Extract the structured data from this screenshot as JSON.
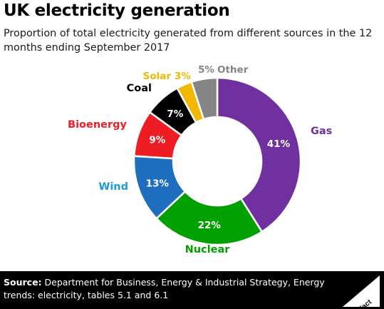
{
  "title": "UK electricity generation",
  "subtitle": "Proportion of total electricity generated from different sources in the 12 months ending September 2017",
  "chart_data": {
    "type": "pie",
    "variant": "donut",
    "slices": [
      {
        "name": "Gas",
        "value": 41,
        "label": "41%",
        "color": "#7030a0"
      },
      {
        "name": "Nuclear",
        "value": 22,
        "label": "22%",
        "color": "#00a000"
      },
      {
        "name": "Wind",
        "value": 13,
        "label": "13%",
        "color": "#1e6ebf"
      },
      {
        "name": "Bioenergy",
        "value": 9,
        "label": "9%",
        "color": "#ee1d24"
      },
      {
        "name": "Coal",
        "value": 7,
        "label": "7%",
        "color": "#000000"
      },
      {
        "name": "Solar",
        "value": 3,
        "label": "3%",
        "color": "#f0b800"
      },
      {
        "name": "Other",
        "value": 5,
        "label": "5%",
        "color": "#858585"
      }
    ],
    "name_colors": {
      "Gas": "#7030a0",
      "Nuclear": "#00a000",
      "Wind": "#1e9ad6",
      "Bioenergy": "#ee1d24",
      "Coal": "#000000",
      "Solar": "#f0b800",
      "Other": "#858585"
    }
  },
  "footer": {
    "source_label": "Source:",
    "source_text": " Department for Business, Energy & Industrial Strategy, Energy trends: electricity, tables 5.1 and 6.1",
    "logo_text": "Full Fact"
  },
  "colors": {
    "footer_bg": "#000000",
    "footer_text": "#ffffff"
  }
}
